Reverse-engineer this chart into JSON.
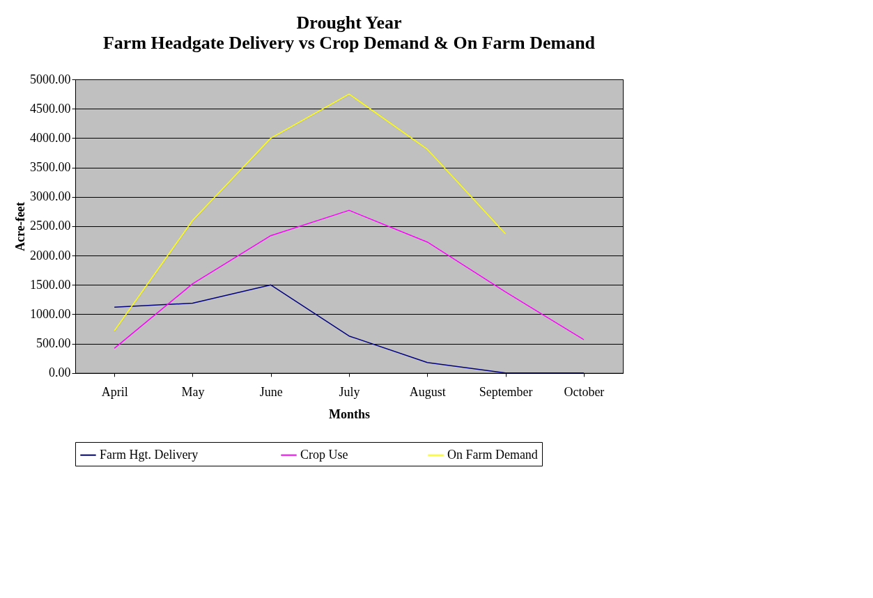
{
  "chart_data": {
    "type": "line",
    "title": "Drought Year",
    "subtitle": "Farm Headgate Delivery vs Crop Demand & On Farm Demand",
    "xlabel": "Months",
    "ylabel": "Acre-feet",
    "categories": [
      "April",
      "May",
      "June",
      "July",
      "August",
      "September",
      "October"
    ],
    "series": [
      {
        "name": "Farm Hgt.  Delivery",
        "color": "#000080",
        "values": [
          1120,
          1190,
          1500,
          630,
          180,
          0,
          0
        ]
      },
      {
        "name": "Crop Use",
        "color": "#ff00ff",
        "values": [
          420,
          1520,
          2340,
          2770,
          2230,
          1380,
          570
        ]
      },
      {
        "name": "On Farm Demand",
        "color": "#ffff00",
        "values": [
          720,
          2600,
          4000,
          4750,
          3810,
          2370,
          null
        ]
      }
    ],
    "ylim": [
      0,
      5000
    ],
    "yticks": [
      {
        "value": 0,
        "label": "0.00"
      },
      {
        "value": 500,
        "label": "500.00"
      },
      {
        "value": 1000,
        "label": "1000.00"
      },
      {
        "value": 1500,
        "label": "1500.00"
      },
      {
        "value": 2000,
        "label": "2000.00"
      },
      {
        "value": 2500,
        "label": "2500.00"
      },
      {
        "value": 3000,
        "label": "3000.00"
      },
      {
        "value": 3500,
        "label": "3500.00"
      },
      {
        "value": 4000,
        "label": "4000.00"
      },
      {
        "value": 4500,
        "label": "4500.00"
      },
      {
        "value": 5000,
        "label": "5000.00"
      }
    ],
    "grid": "y",
    "legend": "bottom",
    "marker": "none",
    "line_style": "solid"
  }
}
